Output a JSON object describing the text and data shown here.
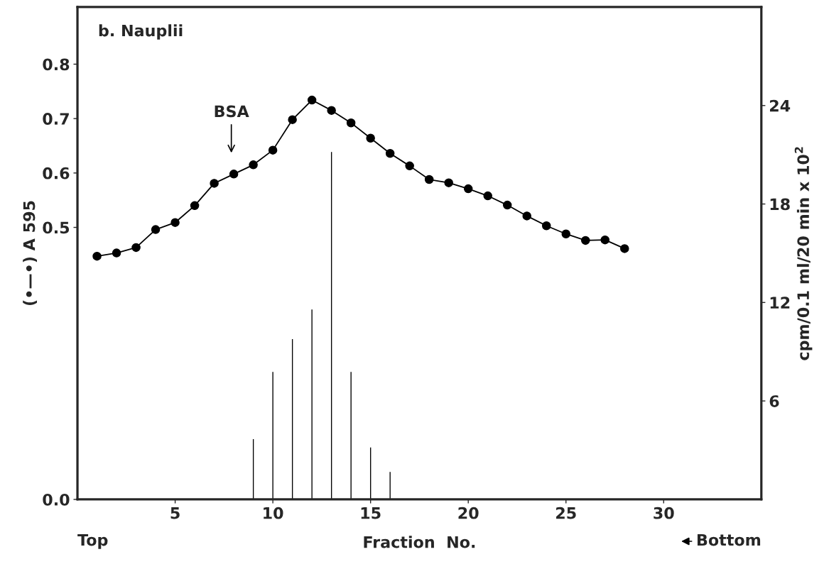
{
  "chart_data": {
    "type": "line",
    "title": "b. Nauplii",
    "xlabel": "Fraction  No.",
    "ylabel": "(•—•) A 595",
    "y2label": "cpm/0.1 ml/20 min x 10$^{2}$",
    "x": [
      1,
      2,
      3,
      4,
      5,
      6,
      7,
      8,
      9,
      10,
      11,
      12,
      13,
      14,
      15,
      16,
      17,
      18,
      19,
      20,
      21,
      22,
      23,
      24,
      25,
      26,
      27,
      28
    ],
    "series": [
      {
        "color": "#000000",
        "marker": "circle",
        "line_style": "solid",
        "values": [
          0.447,
          0.453,
          0.463,
          0.496,
          0.509,
          0.54,
          0.581,
          0.598,
          0.615,
          0.642,
          0.698,
          0.734,
          0.715,
          0.692,
          0.664,
          0.636,
          0.613,
          0.588,
          0.582,
          0.571,
          0.558,
          0.541,
          0.521,
          0.503,
          0.488,
          0.476,
          0.477,
          0.461
        ]
      },
      {
        "type": "bar",
        "axis": "y2",
        "color": "#000000",
        "x": [
          9,
          10,
          11,
          12,
          13,
          14,
          15,
          16
        ],
        "values": [
          3.7,
          7.8,
          9.8,
          11.6,
          21.2,
          7.8,
          3.2,
          1.7
        ]
      }
    ],
    "xlim": [
      0,
      35
    ],
    "xticks": [
      5,
      10,
      15,
      20,
      25,
      30
    ],
    "ylim": [
      0.0,
      0.905
    ],
    "yticks": [
      {
        "value": 0,
        "label": "0.0"
      },
      0.5,
      0.6,
      0.7,
      0.8
    ],
    "y2lim": [
      0,
      30
    ],
    "y2ticks": [
      6,
      12,
      18,
      24
    ],
    "annotations": [
      "BSA",
      "Top",
      "Bottom"
    ],
    "grid": false,
    "legend": false
  }
}
